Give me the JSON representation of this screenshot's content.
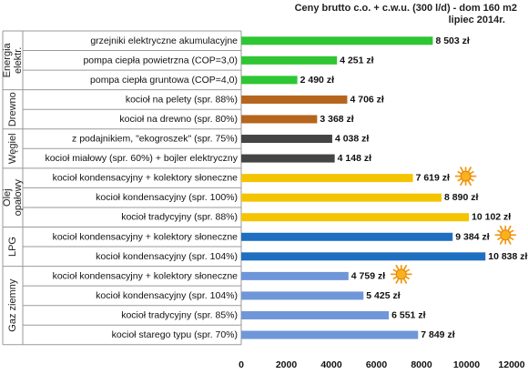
{
  "chart_data": {
    "type": "bar",
    "orientation": "horizontal",
    "title": "Ceny brutto  c.o. + c.w.u. (300 l/d) - dom 160 m2",
    "subtitle": "lipiec 2014r.",
    "xlim": [
      0,
      12000
    ],
    "xticks": [
      "0",
      "2000",
      "4000",
      "6000",
      "8000",
      "10000",
      "12000"
    ],
    "value_suffix": " zł",
    "grid": false,
    "groups": [
      {
        "name": "Energia elektr.",
        "color": "#2ec633",
        "items": [
          {
            "label": "grzejniki elektryczne akumulacyjne",
            "value": 8503,
            "value_label": "8 503 zł",
            "sun": false
          },
          {
            "label": "pompa ciepła powietrzna (COP=3,0)",
            "value": 4251,
            "value_label": "4 251 zł",
            "sun": false
          },
          {
            "label": "pompa ciepła gruntowa (COP=4,0)",
            "value": 2490,
            "value_label": "2 490 zł",
            "sun": false
          }
        ]
      },
      {
        "name": "Drewno",
        "color": "#b5651d",
        "items": [
          {
            "label": "kocioł na pelety (spr. 88%)",
            "value": 4706,
            "value_label": "4 706 zł",
            "sun": false
          },
          {
            "label": "kocioł na drewno (spr. 80%)",
            "value": 3368,
            "value_label": "3 368 zł",
            "sun": false
          }
        ]
      },
      {
        "name": "Węgiel",
        "color": "#444444",
        "items": [
          {
            "label": "z podajnikiem, \"ekogroszek\" (spr. 75%)",
            "value": 4038,
            "value_label": "4 038 zł",
            "sun": false
          },
          {
            "label": "kocioł miałowy (spr. 60%) + bojler elektryczny",
            "value": 4148,
            "value_label": "4 148 zł",
            "sun": false
          }
        ]
      },
      {
        "name": "Olej opałowy",
        "color": "#f5c400",
        "items": [
          {
            "label": "kocioł kondensacyjny + kolektory słoneczne",
            "value": 7619,
            "value_label": "7 619 zł",
            "sun": true
          },
          {
            "label": "kocioł kondensacyjny (spr. 100%)",
            "value": 8890,
            "value_label": "8 890 zł",
            "sun": false
          },
          {
            "label": "kocioł tradycyjny (spr. 88%)",
            "value": 10102,
            "value_label": "10 102 zł",
            "sun": false
          }
        ]
      },
      {
        "name": "LPG",
        "color": "#1f6fc0",
        "items": [
          {
            "label": "kocioł kondensacyjny + kolektory słoneczne",
            "value": 9384,
            "value_label": "9 384 zł",
            "sun": true
          },
          {
            "label": "kocioł kondensacyjny (spr. 104%)",
            "value": 10838,
            "value_label": "10 838 zł",
            "sun": false
          }
        ]
      },
      {
        "name": "Gaz ziemny",
        "color": "#6f96d8",
        "items": [
          {
            "label": "kocioł kondensacyjny + kolektory słoneczne",
            "value": 4759,
            "value_label": "4 759 zł",
            "sun": true
          },
          {
            "label": "kocioł kondensacyjny (spr. 104%)",
            "value": 5425,
            "value_label": "5 425 zł",
            "sun": false
          },
          {
            "label": "kocioł tradycyjny (spr. 85%)",
            "value": 6551,
            "value_label": "6 551 zł",
            "sun": false
          },
          {
            "label": "kocioł starego typu (spr. 70%)",
            "value": 7849,
            "value_label": "7 849 zł",
            "sun": false
          }
        ]
      }
    ]
  }
}
